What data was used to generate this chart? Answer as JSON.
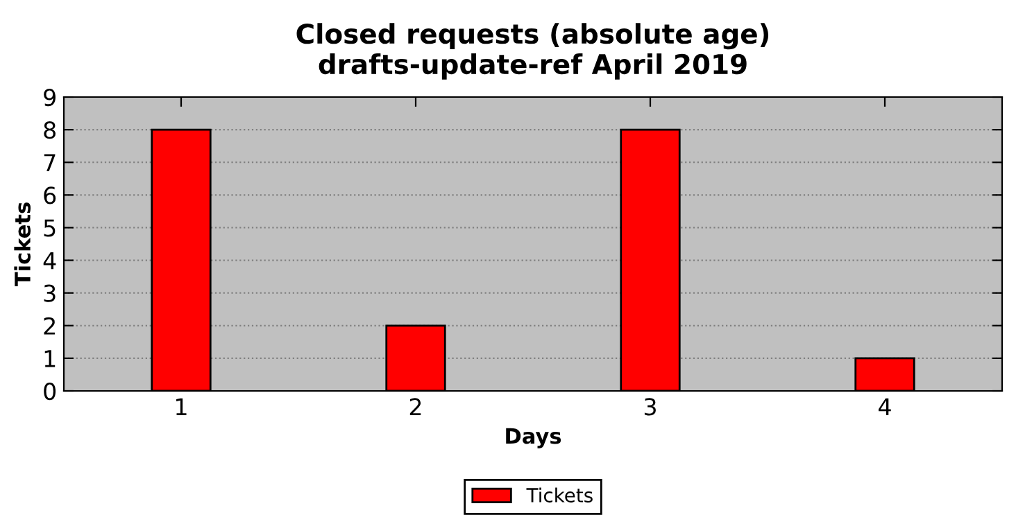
{
  "chart_data": {
    "type": "bar",
    "title": "Closed requests (absolute age)\ndrafts-update-ref April 2019",
    "xlabel": "Days",
    "ylabel": "Tickets",
    "x": [
      1,
      2,
      3,
      4
    ],
    "series": [
      {
        "name": "Tickets",
        "color": "#ff0000",
        "values": [
          8,
          2,
          8,
          1
        ]
      }
    ],
    "xlim": [
      0.5,
      4.5
    ],
    "xticks": [
      1,
      2,
      3,
      4
    ],
    "ylim": [
      0,
      9
    ],
    "yticks": [
      0,
      1,
      2,
      3,
      4,
      5,
      6,
      7,
      8,
      9
    ],
    "grid": "y",
    "legend": "bottom"
  }
}
